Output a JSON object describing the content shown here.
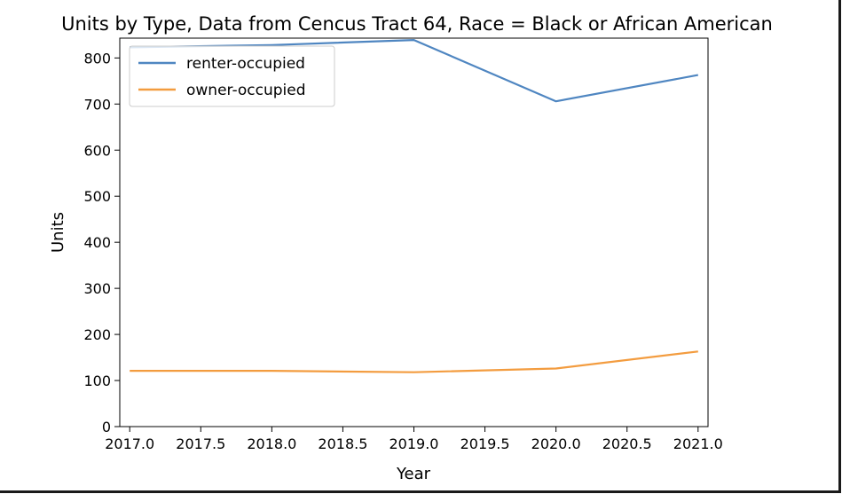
{
  "chart_data": {
    "type": "line",
    "title": "Units by Type, Data from Cencus Tract 64, Race = Black or African American",
    "xlabel": "Year",
    "ylabel": "Units",
    "x": [
      2017,
      2018,
      2019,
      2020,
      2021
    ],
    "xlim": [
      2016.93,
      2021.07
    ],
    "ylim": [
      0,
      843
    ],
    "xticks": [
      2017.0,
      2017.5,
      2018.0,
      2018.5,
      2019.0,
      2019.5,
      2020.0,
      2020.5,
      2021.0
    ],
    "xtick_labels": [
      "2017.0",
      "2017.5",
      "2018.0",
      "2018.5",
      "2019.0",
      "2019.5",
      "2020.0",
      "2020.5",
      "2021.0"
    ],
    "yticks": [
      0,
      100,
      200,
      300,
      400,
      500,
      600,
      700,
      800
    ],
    "ytick_labels": [
      "0",
      "100",
      "200",
      "300",
      "400",
      "500",
      "600",
      "700",
      "800"
    ],
    "grid": false,
    "legend_position": "top-left",
    "series": [
      {
        "name": "renter-occupied",
        "color": "#4f86c1",
        "values": [
          823,
          828,
          839,
          706,
          763
        ]
      },
      {
        "name": "owner-occupied",
        "color": "#f39c3f",
        "values": [
          121,
          121,
          118,
          126,
          163
        ]
      }
    ]
  }
}
